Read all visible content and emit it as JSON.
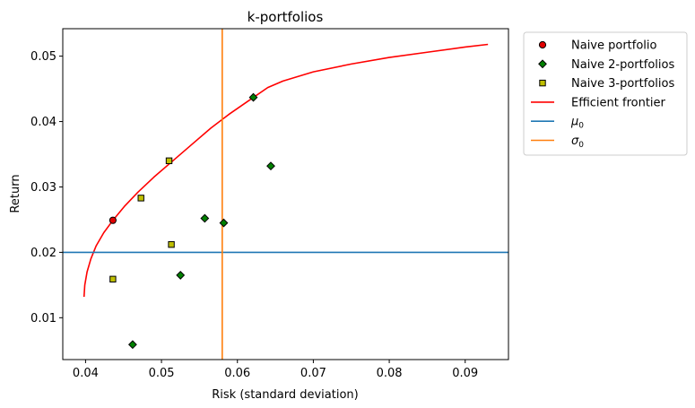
{
  "chart_data": {
    "type": "scatter",
    "title": "k-portfolios",
    "xlabel": "Risk (standard deviation)",
    "ylabel": "Return",
    "xlim": [
      0.037,
      0.0957
    ],
    "ylim": [
      0.0036,
      0.0542
    ],
    "xticks": [
      0.04,
      0.05,
      0.06,
      0.07,
      0.08,
      0.09
    ],
    "xtick_labels": [
      "0.04",
      "0.05",
      "0.06",
      "0.07",
      "0.08",
      "0.09"
    ],
    "yticks": [
      0.01,
      0.02,
      0.03,
      0.04,
      0.05
    ],
    "ytick_labels": [
      "0.01",
      "0.02",
      "0.03",
      "0.04",
      "0.05"
    ],
    "grid": false,
    "legend_placement": "outside-top-right",
    "series": [
      {
        "name": "Naive portfolio",
        "kind": "scatter",
        "marker": "circle",
        "color": "#e00000",
        "points": [
          [
            0.0436,
            0.0249
          ]
        ]
      },
      {
        "name": "Naive 2-portfolios",
        "kind": "scatter",
        "marker": "diamond",
        "color": "#008000",
        "points": [
          [
            0.0462,
            0.0059
          ],
          [
            0.0525,
            0.0165
          ],
          [
            0.0557,
            0.0252
          ],
          [
            0.0582,
            0.0245
          ],
          [
            0.0621,
            0.0437
          ],
          [
            0.0644,
            0.0332
          ]
        ]
      },
      {
        "name": "Naive 3-portfolios",
        "kind": "scatter",
        "marker": "square",
        "color": "#bfbf00",
        "points": [
          [
            0.0436,
            0.0159
          ],
          [
            0.0473,
            0.0283
          ],
          [
            0.051,
            0.034
          ],
          [
            0.0513,
            0.0212
          ]
        ]
      },
      {
        "name": "Efficient frontier",
        "kind": "line",
        "color": "#ff0000",
        "points": [
          [
            0.0398,
            0.0132
          ],
          [
            0.0399,
            0.015
          ],
          [
            0.0402,
            0.017
          ],
          [
            0.0407,
            0.019
          ],
          [
            0.0414,
            0.021
          ],
          [
            0.0424,
            0.023
          ],
          [
            0.0436,
            0.0249
          ],
          [
            0.0451,
            0.027
          ],
          [
            0.0469,
            0.0292
          ],
          [
            0.049,
            0.0315
          ],
          [
            0.0515,
            0.034
          ],
          [
            0.054,
            0.0365
          ],
          [
            0.0565,
            0.039
          ],
          [
            0.059,
            0.0412
          ],
          [
            0.0615,
            0.0432
          ],
          [
            0.064,
            0.0452
          ],
          [
            0.066,
            0.0462
          ],
          [
            0.07,
            0.0476
          ],
          [
            0.075,
            0.0488
          ],
          [
            0.08,
            0.0498
          ],
          [
            0.085,
            0.0506
          ],
          [
            0.09,
            0.0514
          ],
          [
            0.093,
            0.0518
          ]
        ]
      },
      {
        "name": "μ0",
        "label_main": "μ",
        "label_sub": "0",
        "kind": "hline",
        "color": "#1f77b4",
        "value": 0.02
      },
      {
        "name": "σ0",
        "label_main": "σ",
        "label_sub": "0",
        "kind": "vline",
        "color": "#ff7f0e",
        "value": 0.058
      }
    ]
  }
}
